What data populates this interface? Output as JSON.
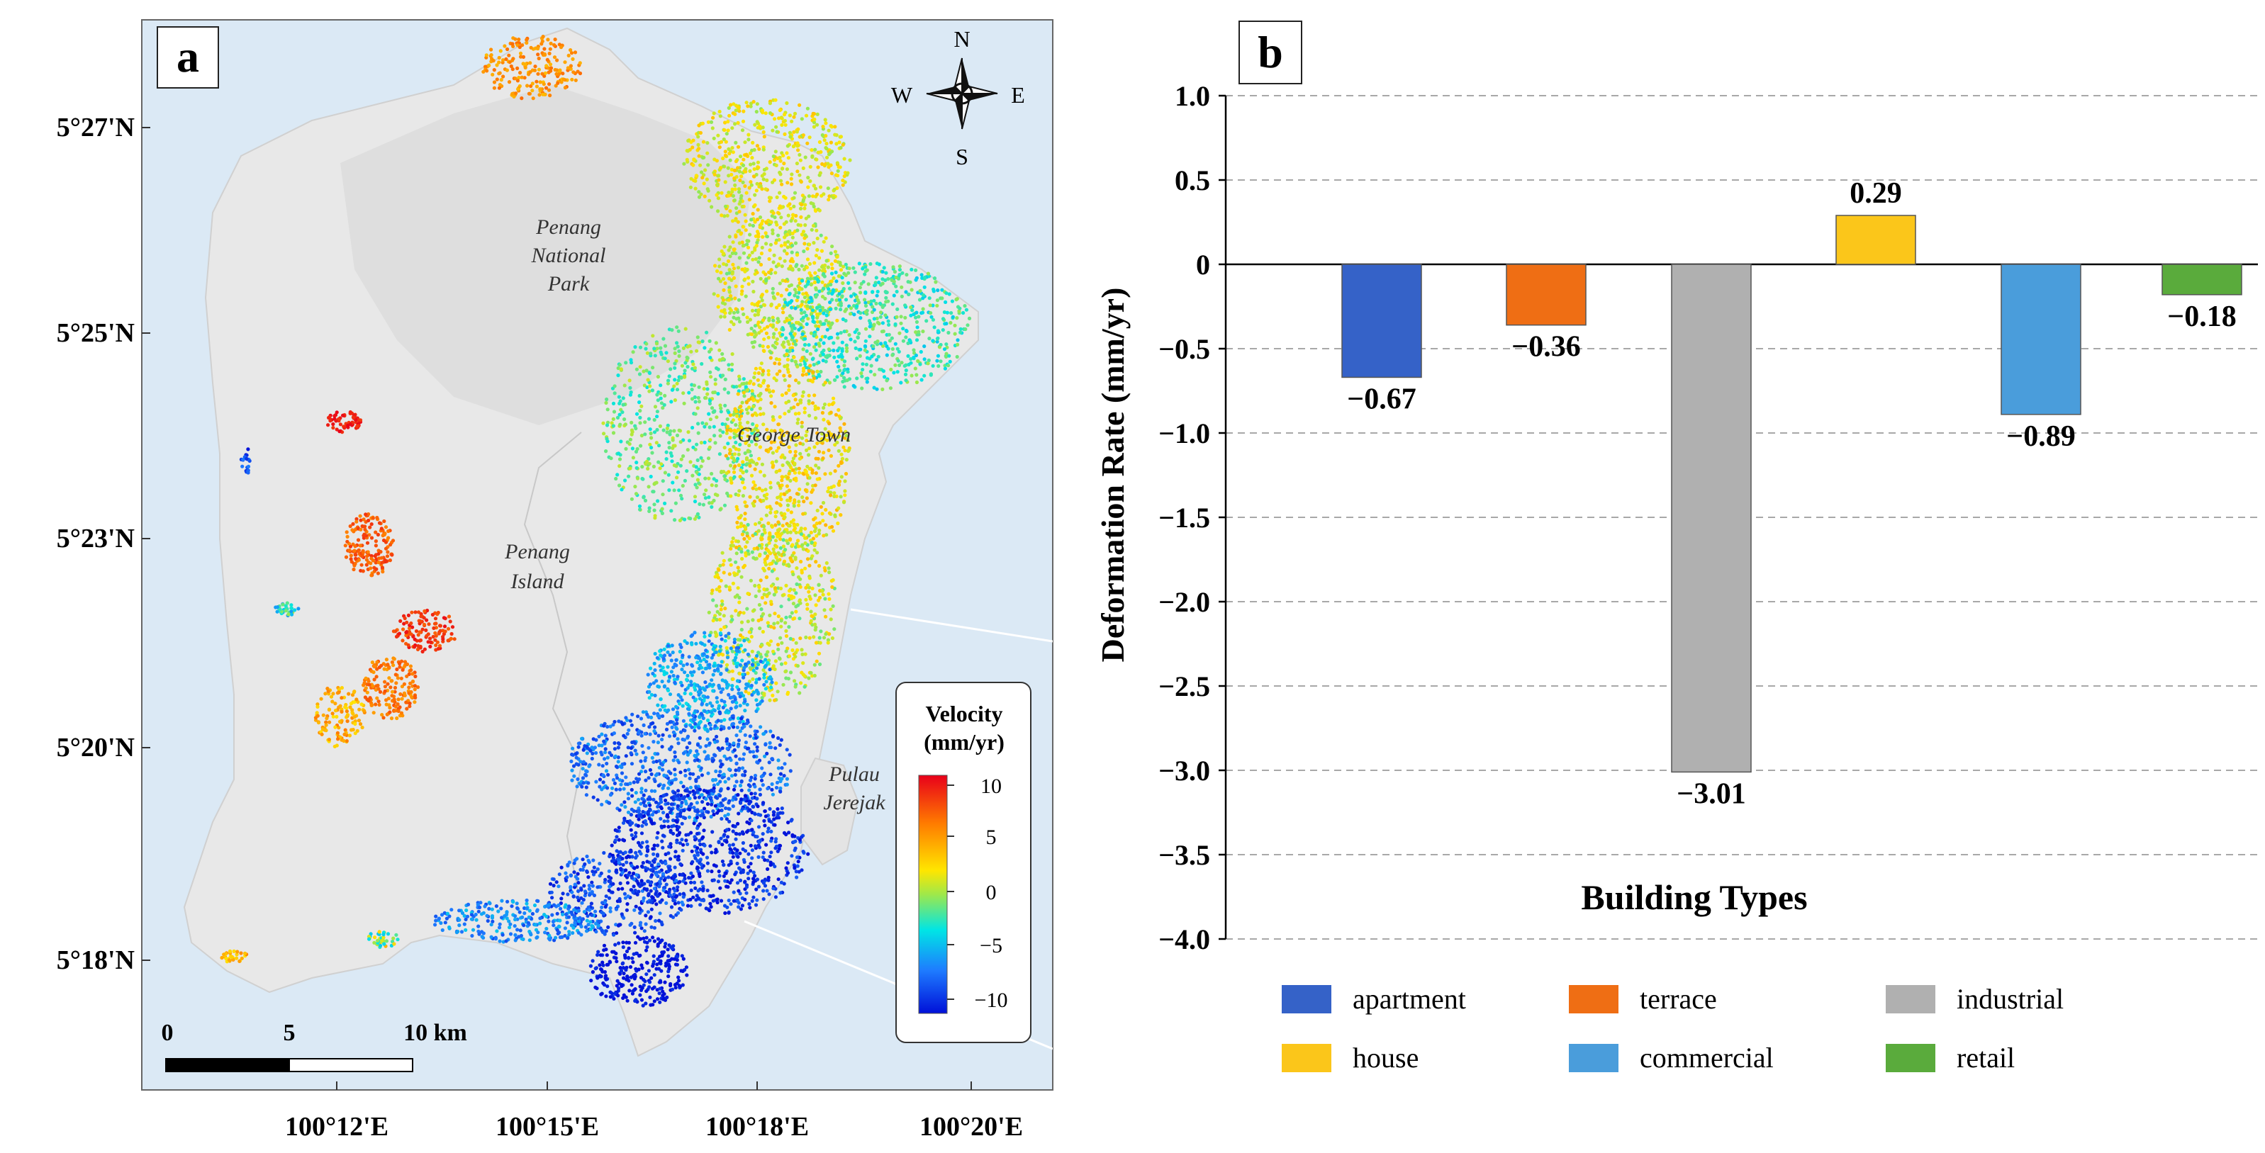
{
  "panels": {
    "a": {
      "letter": "a",
      "lat_labels": [
        "5°27'N",
        "5°25'N",
        "5°23'N",
        "5°20'N",
        "5°18'N"
      ],
      "lon_labels": [
        "100°12'E",
        "100°15'E",
        "100°18'E",
        "100°20'E"
      ],
      "place_names": {
        "national_park_1": "Penang",
        "national_park_2": "National",
        "national_park_3": "Park",
        "george_town": "George Town",
        "island_1": "Penang",
        "island_2": "Island",
        "jerejak_1": "Pulau",
        "jerejak_2": "Jerejak"
      },
      "compass": {
        "n": "N",
        "s": "S",
        "e": "E",
        "w": "W"
      },
      "scale_bar": {
        "t0": "0",
        "t1": "5",
        "t2": "10 km"
      },
      "legend": {
        "title_1": "Velocity",
        "title_2": "(mm/yr)",
        "ticks": [
          "10",
          "5",
          "0",
          "−5",
          "−10"
        ]
      },
      "colors": {
        "water": "#dbe9f5",
        "land": "#e8e8e8",
        "park": "#dedede"
      }
    },
    "b": {
      "letter": "b"
    }
  },
  "chart_data": {
    "type": "bar",
    "categories": [
      "apartment",
      "terrace",
      "industrial",
      "house",
      "commercial",
      "retail"
    ],
    "values": [
      -0.67,
      -0.36,
      -3.01,
      0.29,
      -0.89,
      -0.18
    ],
    "value_labels": [
      "−0.67",
      "−0.36",
      "−3.01",
      "0.29",
      "−0.89",
      "−0.18"
    ],
    "colors": [
      "#3562c8",
      "#ef6e14",
      "#b0b0b0",
      "#fbc61a",
      "#4a9ddb",
      "#5aab3c"
    ],
    "xlabel": "Building Types",
    "ylabel": "Deformation Rate (mm/yr)",
    "ylim": [
      -4.0,
      1.0
    ],
    "yticks": [
      "1.0",
      "0.5",
      "0",
      "−0.5",
      "−1.0",
      "−1.5",
      "−2.0",
      "−2.5",
      "−3.0",
      "−3.5",
      "−4.0"
    ],
    "grid": true,
    "legend_position": "bottom"
  }
}
